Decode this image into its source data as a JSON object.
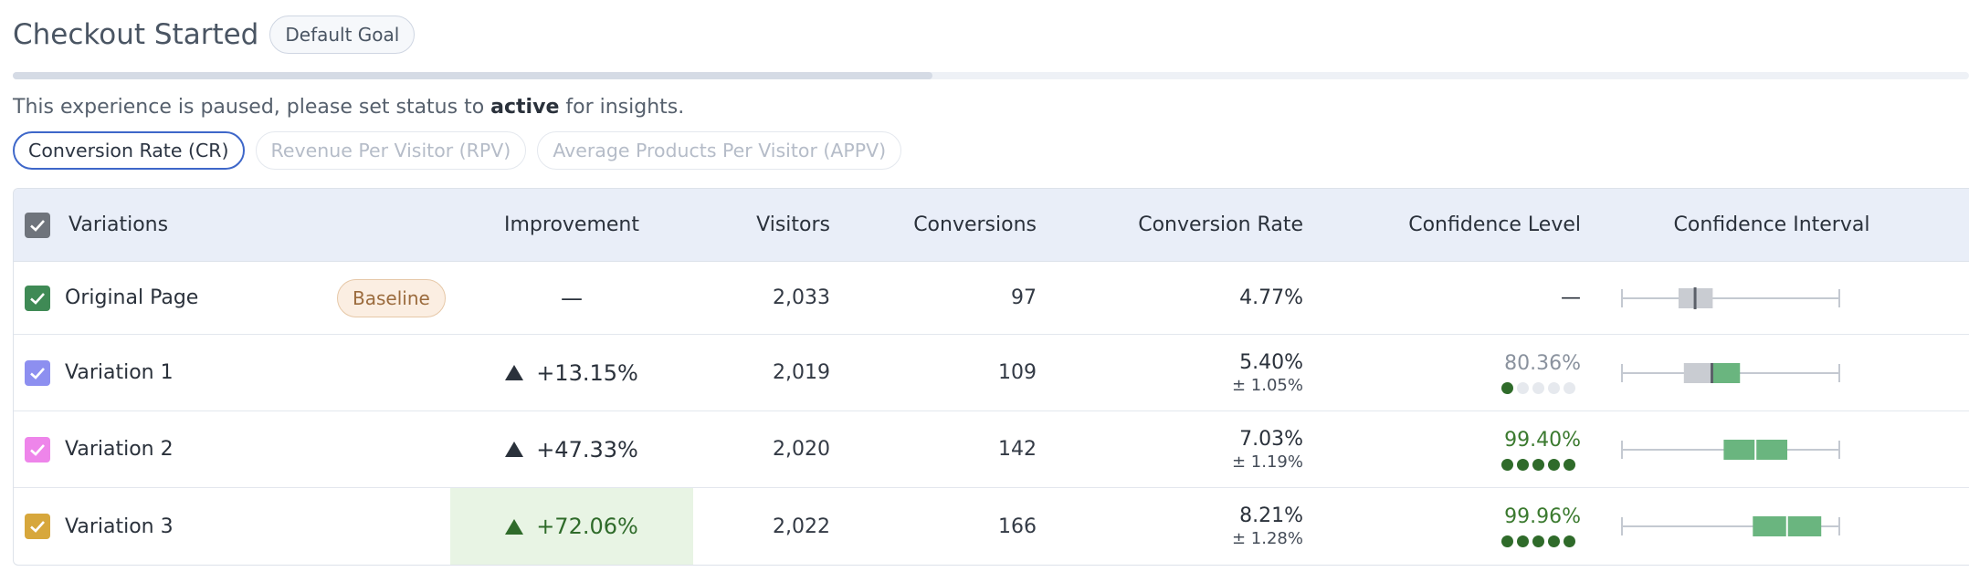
{
  "header": {
    "title": "Checkout Started",
    "goal_badge": "Default Goal"
  },
  "progress": {
    "fraction": 0.47
  },
  "notice": {
    "prefix": "This experience is paused, please set status to ",
    "emphasis": "active",
    "suffix": " for insights."
  },
  "tabs": [
    {
      "label": "Conversion Rate (CR)",
      "active": true
    },
    {
      "label": "Revenue Per Visitor (RPV)",
      "active": false
    },
    {
      "label": "Average Products Per Visitor (APPV)",
      "active": false
    }
  ],
  "table": {
    "columns": {
      "variations": "Variations",
      "improvement": "Improvement",
      "visitors": "Visitors",
      "conversions": "Conversions",
      "conversion_rate": "Conversion Rate",
      "confidence_level": "Confidence Level",
      "confidence_interval": "Confidence Interval"
    },
    "baseline_label": "Baseline",
    "rows": [
      {
        "name": "Original Page",
        "checkbox_color": "#3f8a55",
        "improvement": "—",
        "visitors": "2,033",
        "conversions": "97",
        "cr": "4.77%",
        "cr_margin": "",
        "confidence": "—",
        "confidence_color": "#2a313b",
        "dots": 0,
        "ci": {
          "low": 4.15,
          "high": 5.43,
          "point": 4.77
        }
      },
      {
        "name": "Variation 1",
        "checkbox_color": "#8d8ff0",
        "improvement": "+13.15%",
        "visitors": "2,019",
        "conversions": "109",
        "cr": "5.40%",
        "cr_margin": "± 1.05%",
        "confidence": "80.36%",
        "confidence_color": "#8a929e",
        "dots": 1,
        "ci": {
          "low": 4.35,
          "high": 6.45,
          "point": 5.4
        }
      },
      {
        "name": "Variation 2",
        "checkbox_color": "#ee85ea",
        "improvement": "+47.33%",
        "visitors": "2,020",
        "conversions": "142",
        "cr": "7.03%",
        "cr_margin": "± 1.19%",
        "confidence": "99.40%",
        "confidence_color": "#3b7a2f",
        "dots": 5,
        "ci": {
          "low": 5.84,
          "high": 8.22,
          "point": 7.03
        }
      },
      {
        "name": "Variation 3",
        "checkbox_color": "#d7a73c",
        "improvement": "+72.06%",
        "visitors": "2,022",
        "conversions": "166",
        "cr": "8.21%",
        "cr_margin": "± 1.28%",
        "confidence": "99.96%",
        "confidence_color": "#3b7a2f",
        "dots": 5,
        "ci": {
          "low": 6.93,
          "high": 9.49,
          "point": 8.21
        }
      }
    ],
    "ci_axis": {
      "min": 2.0,
      "max": 10.2
    }
  }
}
